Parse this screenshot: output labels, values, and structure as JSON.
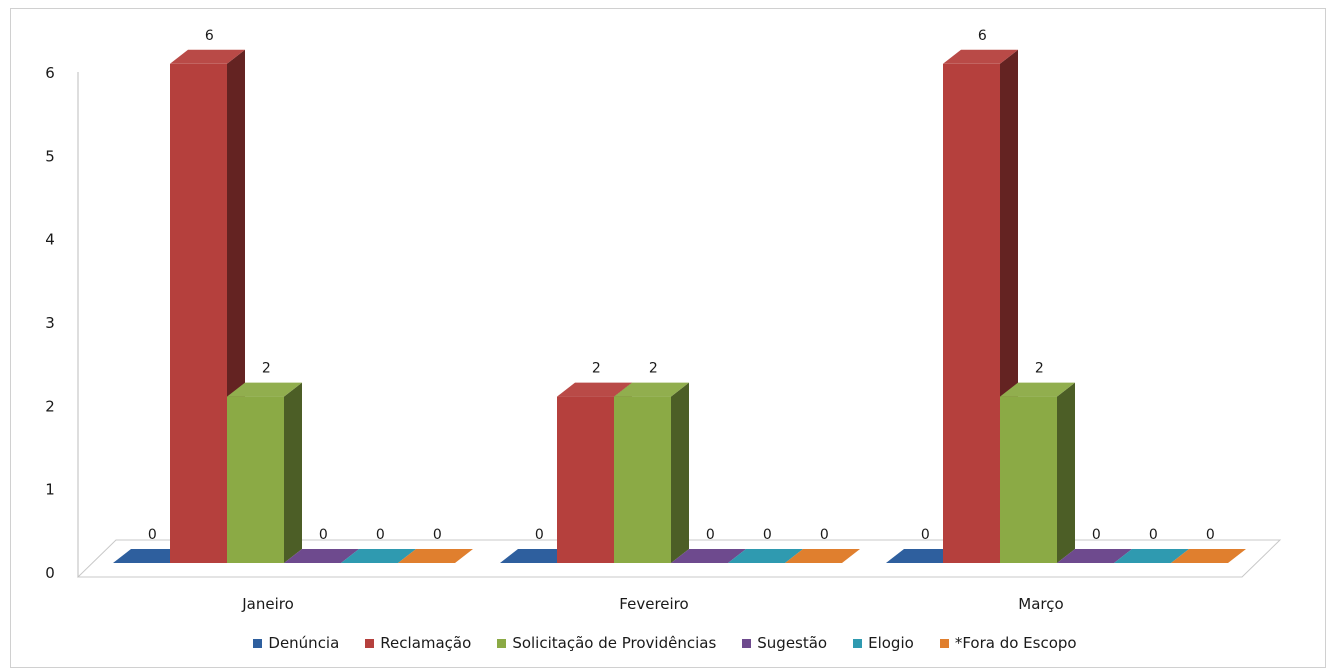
{
  "chart_data": {
    "type": "bar",
    "title": "",
    "xlabel": "",
    "ylabel": "",
    "categories": [
      "Janeiro",
      "Fevereiro",
      "Março"
    ],
    "series": [
      {
        "name": "Denúncia",
        "values": [
          0,
          0,
          0
        ],
        "color": "#2E5F9E"
      },
      {
        "name": "Reclamação",
        "values": [
          6,
          2,
          6
        ],
        "color": "#B5403D"
      },
      {
        "name": "Solicitação de Providências",
        "values": [
          2,
          2,
          2
        ],
        "color": "#8BAA45"
      },
      {
        "name": "Sugestão",
        "values": [
          0,
          0,
          0
        ],
        "color": "#6E4A8E"
      },
      {
        "name": "Elogio",
        "values": [
          0,
          0,
          0
        ],
        "color": "#2F9AB0"
      },
      {
        "name": "*Fora do Escopo",
        "values": [
          0,
          0,
          0
        ],
        "color": "#E07F2E"
      }
    ],
    "yticks": [
      "0",
      "1",
      "2",
      "3",
      "4",
      "5",
      "6"
    ],
    "ylim": [
      0,
      6
    ],
    "grid": false,
    "legend_position": "bottom",
    "data_labels": true
  }
}
